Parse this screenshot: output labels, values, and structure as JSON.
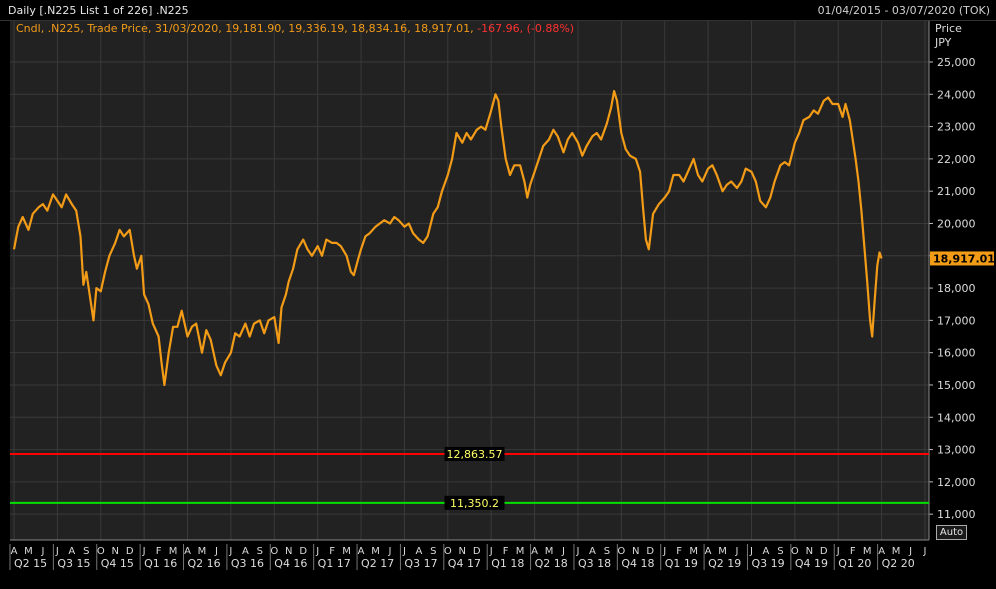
{
  "window": {
    "title": "Daily [.N225 List 1 of 226] .N225",
    "date_range": "01/04/2015 - 03/07/2020 (TOK)"
  },
  "legend": {
    "text": "Cndl, .N225, Trade Price, 31/03/2020, 19,181.90, 19,336.19, 18,834.16, 18,917.01,",
    "change": "-167.96, (-0.88%)",
    "change_color": "#ff3030"
  },
  "axis": {
    "price_label": "Price",
    "currency_label": "JPY",
    "auto_button_label": "Auto"
  },
  "colors": {
    "background": "#222222",
    "grid": "#3a3a3a",
    "series": "#f29b17",
    "upper_line": "#ff0000",
    "lower_line": "#00e000",
    "line_label_bg": "#000000",
    "line_label_text": "#ffff66",
    "last_price_badge": "#f29b17"
  },
  "chart_data": {
    "type": "line",
    "series_name": ".N225",
    "y_ticks": [
      11000,
      12000,
      13000,
      14000,
      15000,
      16000,
      17000,
      18000,
      19000,
      20000,
      21000,
      22000,
      23000,
      24000,
      25000
    ],
    "y_tick_labels": [
      "11,000",
      "12,000",
      "13,000",
      "14,000",
      "15,000",
      "16,000",
      "17,000",
      "18,000",
      "19,000",
      "20,000",
      "21,000",
      "22,000",
      "23,000",
      "24,000",
      "25,000"
    ],
    "ylim": [
      10200,
      26300
    ],
    "x_start_month_index": 0,
    "x_end_month_index": 63,
    "month_labels": [
      "A",
      "M",
      "J",
      "J",
      "A",
      "S",
      "O",
      "N",
      "D",
      "J",
      "F",
      "M",
      "A",
      "M",
      "J",
      "J",
      "A",
      "S",
      "O",
      "N",
      "D",
      "J",
      "F",
      "M",
      "A",
      "M",
      "J",
      "J",
      "A",
      "S",
      "O",
      "N",
      "D",
      "J",
      "F",
      "M",
      "A",
      "M",
      "J",
      "J",
      "A",
      "S",
      "O",
      "N",
      "D",
      "J",
      "F",
      "M",
      "A",
      "M",
      "J",
      "J",
      "A",
      "S",
      "O",
      "N",
      "D",
      "J",
      "F",
      "M",
      "A",
      "M",
      "J",
      "J"
    ],
    "quarter_labels": [
      {
        "label": "Q2 15",
        "month": 0
      },
      {
        "label": "Q3 15",
        "month": 3
      },
      {
        "label": "Q4 15",
        "month": 6
      },
      {
        "label": "Q1 16",
        "month": 9
      },
      {
        "label": "Q2 16",
        "month": 12
      },
      {
        "label": "Q3 16",
        "month": 15
      },
      {
        "label": "Q4 16",
        "month": 18
      },
      {
        "label": "Q1 17",
        "month": 21
      },
      {
        "label": "Q2 17",
        "month": 24
      },
      {
        "label": "Q3 17",
        "month": 27
      },
      {
        "label": "Q4 17",
        "month": 30
      },
      {
        "label": "Q1 18",
        "month": 33
      },
      {
        "label": "Q2 18",
        "month": 36
      },
      {
        "label": "Q3 18",
        "month": 39
      },
      {
        "label": "Q4 18",
        "month": 42
      },
      {
        "label": "Q1 19",
        "month": 45
      },
      {
        "label": "Q2 19",
        "month": 48
      },
      {
        "label": "Q3 19",
        "month": 51
      },
      {
        "label": "Q4 19",
        "month": 54
      },
      {
        "label": "Q1 20",
        "month": 57
      },
      {
        "label": "Q2 20",
        "month": 60
      }
    ],
    "points": [
      [
        0.0,
        19200
      ],
      [
        0.3,
        19900
      ],
      [
        0.6,
        20200
      ],
      [
        1.0,
        19800
      ],
      [
        1.3,
        20300
      ],
      [
        1.7,
        20500
      ],
      [
        2.0,
        20600
      ],
      [
        2.3,
        20400
      ],
      [
        2.7,
        20900
      ],
      [
        3.0,
        20700
      ],
      [
        3.3,
        20500
      ],
      [
        3.6,
        20900
      ],
      [
        4.0,
        20600
      ],
      [
        4.3,
        20400
      ],
      [
        4.6,
        19600
      ],
      [
        4.8,
        18100
      ],
      [
        5.0,
        18500
      ],
      [
        5.3,
        17600
      ],
      [
        5.5,
        17000
      ],
      [
        5.7,
        18000
      ],
      [
        6.0,
        17900
      ],
      [
        6.3,
        18500
      ],
      [
        6.6,
        19000
      ],
      [
        7.0,
        19400
      ],
      [
        7.3,
        19800
      ],
      [
        7.6,
        19600
      ],
      [
        8.0,
        19800
      ],
      [
        8.3,
        19000
      ],
      [
        8.5,
        18600
      ],
      [
        8.8,
        19000
      ],
      [
        9.0,
        17800
      ],
      [
        9.3,
        17500
      ],
      [
        9.6,
        16900
      ],
      [
        10.0,
        16500
      ],
      [
        10.2,
        15700
      ],
      [
        10.4,
        15000
      ],
      [
        10.7,
        16000
      ],
      [
        11.0,
        16800
      ],
      [
        11.3,
        16800
      ],
      [
        11.6,
        17300
      ],
      [
        12.0,
        16500
      ],
      [
        12.3,
        16800
      ],
      [
        12.6,
        16900
      ],
      [
        13.0,
        16000
      ],
      [
        13.3,
        16700
      ],
      [
        13.6,
        16400
      ],
      [
        14.0,
        15600
      ],
      [
        14.3,
        15300
      ],
      [
        14.6,
        15700
      ],
      [
        15.0,
        16000
      ],
      [
        15.3,
        16600
      ],
      [
        15.6,
        16500
      ],
      [
        16.0,
        16900
      ],
      [
        16.3,
        16500
      ],
      [
        16.6,
        16900
      ],
      [
        17.0,
        17000
      ],
      [
        17.3,
        16600
      ],
      [
        17.6,
        17000
      ],
      [
        18.0,
        17100
      ],
      [
        18.3,
        16300
      ],
      [
        18.5,
        17400
      ],
      [
        18.8,
        17800
      ],
      [
        19.0,
        18200
      ],
      [
        19.3,
        18600
      ],
      [
        19.6,
        19200
      ],
      [
        20.0,
        19500
      ],
      [
        20.3,
        19200
      ],
      [
        20.6,
        19000
      ],
      [
        21.0,
        19300
      ],
      [
        21.3,
        19000
      ],
      [
        21.6,
        19500
      ],
      [
        22.0,
        19400
      ],
      [
        22.3,
        19400
      ],
      [
        22.6,
        19300
      ],
      [
        23.0,
        19000
      ],
      [
        23.3,
        18500
      ],
      [
        23.5,
        18400
      ],
      [
        23.8,
        18900
      ],
      [
        24.0,
        19200
      ],
      [
        24.3,
        19600
      ],
      [
        24.6,
        19700
      ],
      [
        25.0,
        19900
      ],
      [
        25.3,
        20000
      ],
      [
        25.6,
        20100
      ],
      [
        26.0,
        20000
      ],
      [
        26.3,
        20200
      ],
      [
        26.6,
        20100
      ],
      [
        27.0,
        19900
      ],
      [
        27.3,
        20000
      ],
      [
        27.6,
        19700
      ],
      [
        28.0,
        19500
      ],
      [
        28.3,
        19400
      ],
      [
        28.6,
        19600
      ],
      [
        29.0,
        20300
      ],
      [
        29.3,
        20500
      ],
      [
        29.6,
        21000
      ],
      [
        30.0,
        21500
      ],
      [
        30.3,
        22000
      ],
      [
        30.6,
        22800
      ],
      [
        31.0,
        22500
      ],
      [
        31.3,
        22800
      ],
      [
        31.6,
        22600
      ],
      [
        32.0,
        22900
      ],
      [
        32.3,
        23000
      ],
      [
        32.6,
        22900
      ],
      [
        33.0,
        23500
      ],
      [
        33.3,
        24000
      ],
      [
        33.5,
        23800
      ],
      [
        33.7,
        23000
      ],
      [
        34.0,
        22000
      ],
      [
        34.3,
        21500
      ],
      [
        34.6,
        21800
      ],
      [
        35.0,
        21800
      ],
      [
        35.3,
        21300
      ],
      [
        35.5,
        20800
      ],
      [
        35.7,
        21200
      ],
      [
        36.0,
        21600
      ],
      [
        36.3,
        22000
      ],
      [
        36.6,
        22400
      ],
      [
        37.0,
        22600
      ],
      [
        37.3,
        22900
      ],
      [
        37.6,
        22700
      ],
      [
        38.0,
        22200
      ],
      [
        38.3,
        22600
      ],
      [
        38.6,
        22800
      ],
      [
        39.0,
        22500
      ],
      [
        39.3,
        22100
      ],
      [
        39.6,
        22400
      ],
      [
        40.0,
        22700
      ],
      [
        40.3,
        22800
      ],
      [
        40.6,
        22600
      ],
      [
        41.0,
        23100
      ],
      [
        41.3,
        23600
      ],
      [
        41.5,
        24100
      ],
      [
        41.7,
        23800
      ],
      [
        42.0,
        22800
      ],
      [
        42.3,
        22300
      ],
      [
        42.6,
        22100
      ],
      [
        43.0,
        22000
      ],
      [
        43.3,
        21600
      ],
      [
        43.5,
        20500
      ],
      [
        43.7,
        19500
      ],
      [
        43.9,
        19200
      ],
      [
        44.2,
        20300
      ],
      [
        44.6,
        20600
      ],
      [
        45.0,
        20800
      ],
      [
        45.3,
        21000
      ],
      [
        45.6,
        21500
      ],
      [
        46.0,
        21500
      ],
      [
        46.3,
        21300
      ],
      [
        46.6,
        21600
      ],
      [
        47.0,
        22000
      ],
      [
        47.3,
        21500
      ],
      [
        47.6,
        21300
      ],
      [
        48.0,
        21700
      ],
      [
        48.3,
        21800
      ],
      [
        48.6,
        21500
      ],
      [
        49.0,
        21000
      ],
      [
        49.3,
        21200
      ],
      [
        49.6,
        21300
      ],
      [
        50.0,
        21100
      ],
      [
        50.3,
        21300
      ],
      [
        50.6,
        21700
      ],
      [
        51.0,
        21600
      ],
      [
        51.3,
        21300
      ],
      [
        51.6,
        20700
      ],
      [
        52.0,
        20500
      ],
      [
        52.3,
        20800
      ],
      [
        52.6,
        21300
      ],
      [
        53.0,
        21800
      ],
      [
        53.3,
        21900
      ],
      [
        53.6,
        21800
      ],
      [
        54.0,
        22500
      ],
      [
        54.3,
        22800
      ],
      [
        54.6,
        23200
      ],
      [
        55.0,
        23300
      ],
      [
        55.3,
        23500
      ],
      [
        55.6,
        23400
      ],
      [
        56.0,
        23800
      ],
      [
        56.3,
        23900
      ],
      [
        56.6,
        23700
      ],
      [
        57.0,
        23700
      ],
      [
        57.3,
        23300
      ],
      [
        57.5,
        23700
      ],
      [
        57.8,
        23200
      ],
      [
        58.0,
        22600
      ],
      [
        58.2,
        22000
      ],
      [
        58.4,
        21300
      ],
      [
        58.6,
        20400
      ],
      [
        58.8,
        19300
      ],
      [
        59.0,
        18200
      ],
      [
        59.2,
        17000
      ],
      [
        59.35,
        16500
      ],
      [
        59.5,
        17500
      ],
      [
        59.7,
        18700
      ],
      [
        59.85,
        19100
      ],
      [
        60.0,
        18917
      ]
    ],
    "last_price": 18917.01,
    "last_price_label": "18,917.01",
    "horizontal_lines": [
      {
        "value": 12863.57,
        "label": "12,863.57",
        "color": "#ff0000"
      },
      {
        "value": 11350.2,
        "label": "11,350.2",
        "color": "#00e000"
      }
    ]
  }
}
